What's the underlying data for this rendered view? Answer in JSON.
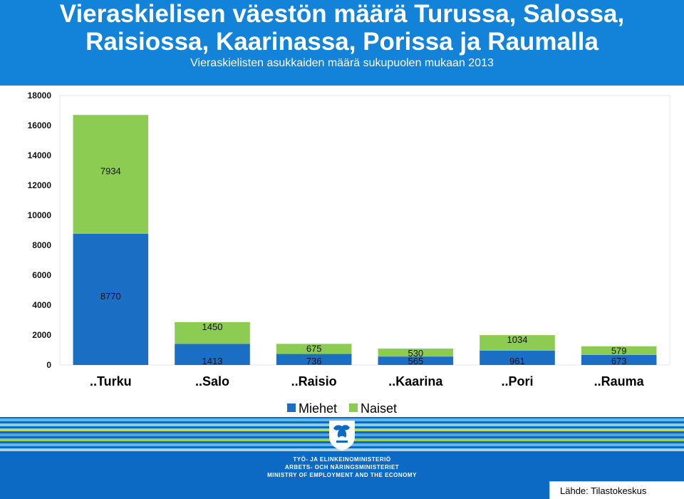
{
  "header": {
    "title_line1": "Vieraskielisen väestön määrä Turussa, Salossa,",
    "title_line2": "Raisiossa, Kaarinassa, Porissa ja Raumalla",
    "subtitle": "Vieraskielisten asukkaiden määrä sukupuolen mukaan 2013"
  },
  "chart_data": {
    "type": "bar",
    "stacked": true,
    "title": "Vieraskielisen väestön määrä Turussa, Salossa, Raisiossa, Kaarinassa, Porissa ja Raumalla",
    "subtitle": "Vieraskielisten asukkaiden määrä sukupuolen mukaan 2013",
    "categories": [
      "..Turku",
      "..Salo",
      "..Raisio",
      "..Kaarina",
      "..Pori",
      "..Rauma"
    ],
    "series": [
      {
        "name": "Miehet",
        "color": "#1a6fc4",
        "values": [
          8770,
          1413,
          736,
          565,
          961,
          673
        ]
      },
      {
        "name": "Naiset",
        "color": "#8dcc52",
        "values": [
          7934,
          1450,
          675,
          530,
          1034,
          579
        ]
      }
    ],
    "yticks": [
      "0",
      "2000",
      "4000",
      "6000",
      "8000",
      "10000",
      "12000",
      "14000",
      "16000",
      "18000"
    ],
    "ylim": [
      0,
      18000
    ],
    "grid": false,
    "legend": "bottom"
  },
  "legend": {
    "items": [
      "Miehet",
      "Naiset"
    ]
  },
  "footer": {
    "ministry_lines": [
      "TYÖ- JA ELINKEINOMINISTERIÖ",
      "ARBETS- OCH NÄRINGSMINISTERIET",
      "MINISTRY OF EMPLOYMENT AND THE ECONOMY"
    ],
    "source": "Lähde: Tilastokeskus"
  },
  "colors": {
    "header_bg": "#1283d8",
    "footer_bg": "#0c69c4",
    "miehet": "#1a6fc4",
    "naiset": "#8dcc52"
  }
}
